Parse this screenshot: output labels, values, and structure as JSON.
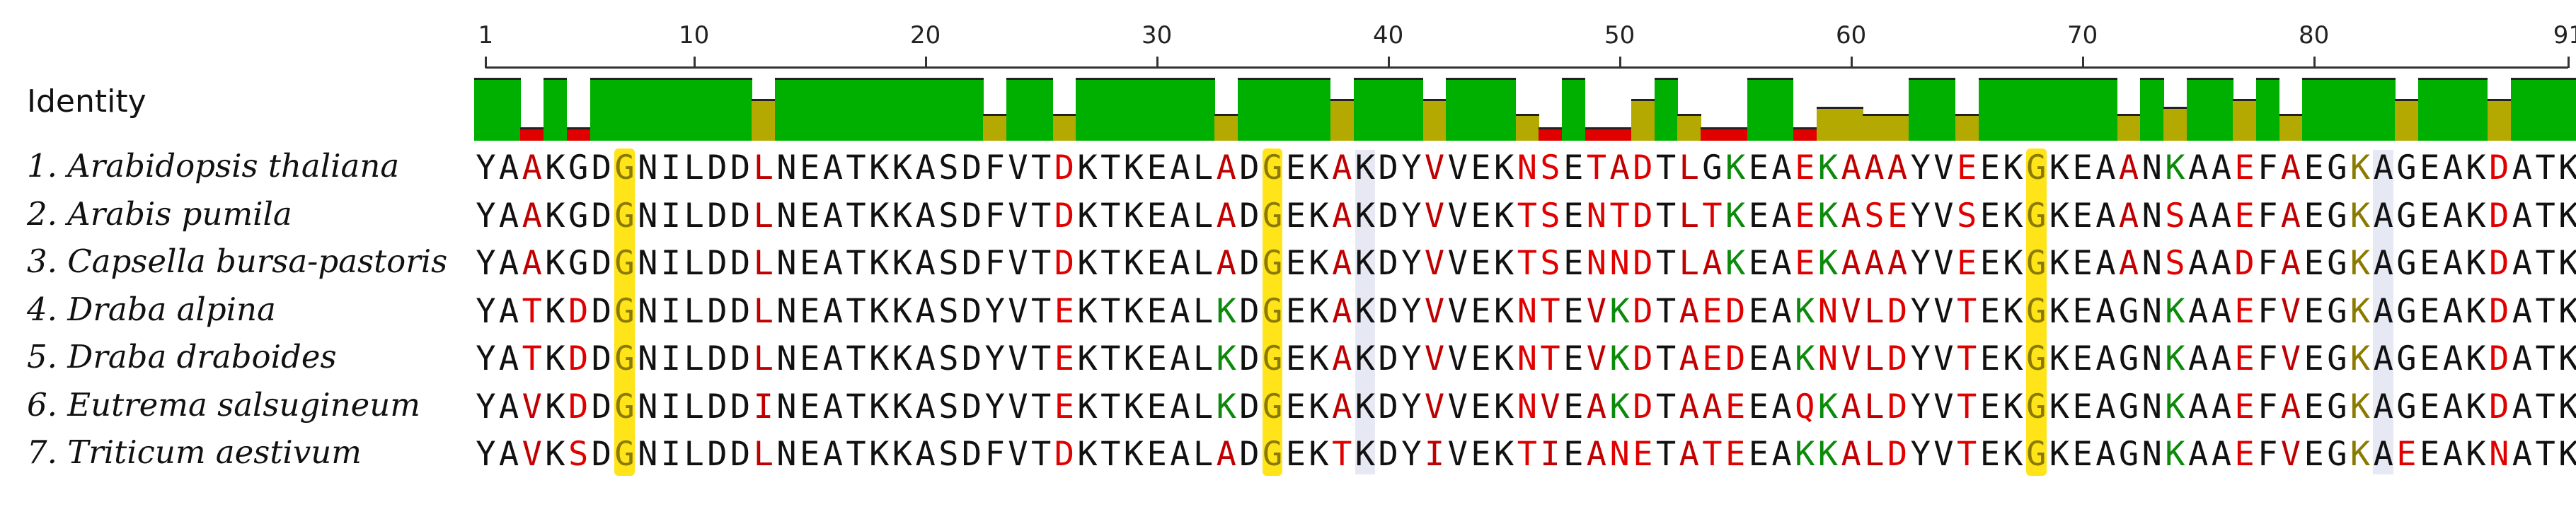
{
  "ruler": {
    "ticks": [
      {
        "pos": 1,
        "label": "1"
      },
      {
        "pos": 10,
        "label": "10"
      },
      {
        "pos": 20,
        "label": "20"
      },
      {
        "pos": 30,
        "label": "30"
      },
      {
        "pos": 40,
        "label": "40"
      },
      {
        "pos": 50,
        "label": "50"
      },
      {
        "pos": 60,
        "label": "60"
      },
      {
        "pos": 70,
        "label": "70"
      },
      {
        "pos": 80,
        "label": "80"
      },
      {
        "pos": 91,
        "label": "91"
      }
    ]
  },
  "identity": {
    "label": "Identity",
    "colors": {
      "full": "#00b000",
      "partial": "#b3a900",
      "low": "#e00000"
    }
  },
  "sequences": [
    {
      "name": "1. Arabidopsis thaliana",
      "seq": "YAAKGDGNILDDLNEATKKASDFVTDKTKEALADGEKAKDYVVEKNSETADTLGKEAEKAAAYVEEKGKEAANKAAEFAEGKAGEAKDATK"
    },
    {
      "name": "2. Arabis pumila",
      "seq": "YAAKGDGNILDDLNEATKKASDFVTDKTKEALADGEKAKDYVVEKTSENTDTLTKEAEKASEYVSEKGKEAANSAAEFAEGKAGEAKDATK"
    },
    {
      "name": "3. Capsella bursa-pastoris",
      "seq": "YAAKGDGNILDDLNEATKKASDFVTDKTKEALADGEKAKDYVVEKTSENNDTLAKEAEKAAAYVEEKGKEAANSAADFAEGKAGEAKDATK"
    },
    {
      "name": "4. Draba alpina",
      "seq": "YATKDDGNILDDLNEATKKASDYVTEKTKEALKDGEKAKDYVVEKNTEVKDTAEDEAKNVLDYVTEKGKEAGNKAAEFVEGKAGEAKDATK"
    },
    {
      "name": "5. Draba draboides",
      "seq": "YATKDDGNILDDLNEATKKASDYVTEKTKEALKDGEKAKDYVVEKNTEVKDTAEDEAKNVLDYVTEKGKEAGNKAAEFVEGKAGEAKDATK"
    },
    {
      "name": "6. Eutrema salsugineum",
      "seq": "YAVKDDGNILDDINEATKKASDYVTEKTKEALKDGEKAKDYVVEKNVEAKDTAAEEAQKALDYVTEKGKEAGNKAAEFAEGKAGEAKDATK"
    },
    {
      "name": "7. Triticum aestivum",
      "seq": "YAVKSDGNILDDLNEATKKASDFVTDKTKEALADGEKTKDYIVEKTIEANETATEEAKKALDYVTEKGKEAGNKAAEFVEGKAEEAKNATK"
    }
  ]
}
